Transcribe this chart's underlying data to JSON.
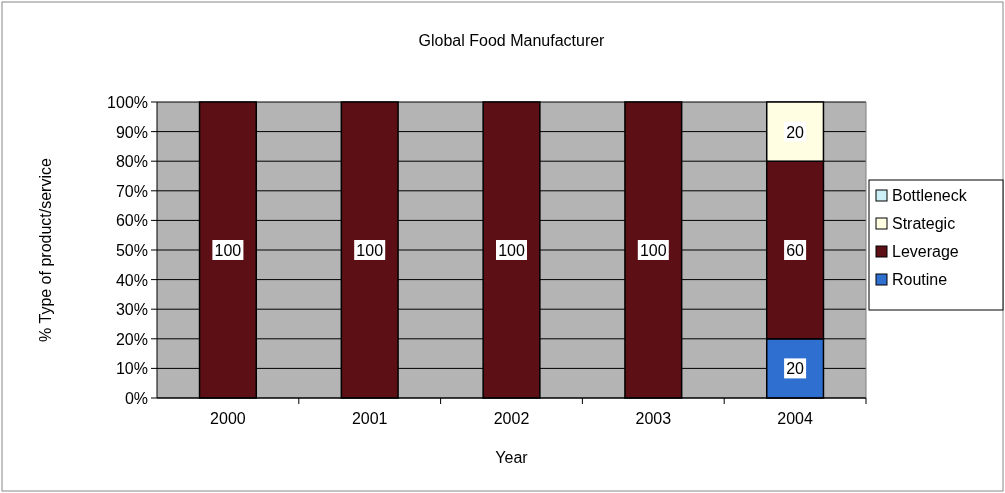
{
  "chart_data": {
    "type": "bar",
    "title": "Global Food Manufacturer",
    "xlabel": "Year",
    "ylabel": "% Type of product/service",
    "categories": [
      "2000",
      "2001",
      "2002",
      "2003",
      "2004"
    ],
    "stacked": true,
    "series": [
      {
        "name": "Routine",
        "color": "#2f6fd0",
        "values": [
          0,
          0,
          0,
          0,
          20
        ],
        "value_labels": [
          null,
          null,
          null,
          null,
          "20"
        ]
      },
      {
        "name": "Leverage",
        "color": "#5c1016",
        "values": [
          100,
          100,
          100,
          100,
          60
        ],
        "value_labels": [
          "100",
          "100",
          "100",
          "100",
          "60"
        ]
      },
      {
        "name": "Strategic",
        "color": "#fffde2",
        "values": [
          0,
          0,
          0,
          0,
          20
        ],
        "value_labels": [
          null,
          null,
          null,
          null,
          "20"
        ]
      },
      {
        "name": "Bottleneck",
        "color": "#cdeff6",
        "values": [
          0,
          0,
          0,
          0,
          0
        ],
        "value_labels": [
          null,
          null,
          null,
          null,
          null
        ]
      }
    ],
    "ylim": [
      0,
      100
    ],
    "yticks": [
      {
        "value": 0,
        "label": "0%"
      },
      {
        "value": 10,
        "label": "10%"
      },
      {
        "value": 20,
        "label": "20%"
      },
      {
        "value": 30,
        "label": "30%"
      },
      {
        "value": 40,
        "label": "40%"
      },
      {
        "value": 50,
        "label": "50%"
      },
      {
        "value": 60,
        "label": "60%"
      },
      {
        "value": 70,
        "label": "70%"
      },
      {
        "value": 80,
        "label": "80%"
      },
      {
        "value": 90,
        "label": "90%"
      },
      {
        "value": 100,
        "label": "100%"
      }
    ],
    "grid": "y",
    "legend": "right"
  }
}
